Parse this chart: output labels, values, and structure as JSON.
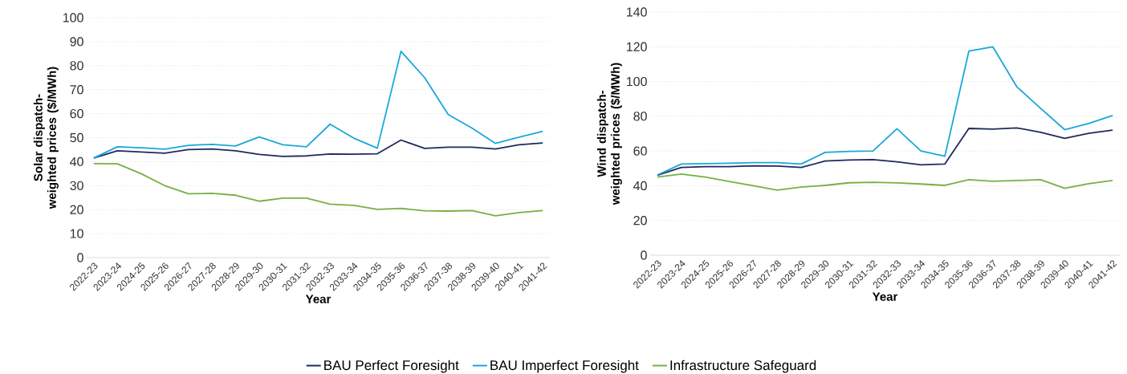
{
  "chart_data": [
    {
      "type": "line",
      "xlabel": "Year",
      "ylabel": "Solar dispatch-weighted prices ($/MWh)",
      "categories": [
        "2022-23",
        "2023-24",
        "2024-25",
        "2025-26",
        "2026-27",
        "2027-28",
        "2028-29",
        "2029-30",
        "2030-31",
        "2031-32",
        "2032-33",
        "2033-34",
        "2034-35",
        "2035-36",
        "2036-37",
        "2037-38",
        "2038-39",
        "2039-40",
        "2040-41",
        "2041-42"
      ],
      "ylim": [
        0,
        100
      ],
      "yticks": [
        0,
        10,
        20,
        30,
        40,
        50,
        60,
        70,
        80,
        90,
        100
      ],
      "grid": "y",
      "legend": "bottom",
      "marker": "none",
      "series": [
        {
          "name": "BAU Perfect Foresight",
          "color": "#1f2a5c",
          "values": [
            41.5,
            44.5,
            44,
            43.5,
            45,
            45.3,
            44.5,
            43,
            42.2,
            42.4,
            43.2,
            43.1,
            43.3,
            49,
            45.5,
            46,
            46,
            45.3,
            47,
            47.8
          ]
        },
        {
          "name": "BAU Imperfect Foresight",
          "color": "#1aa7dc",
          "values": [
            41.5,
            46.2,
            45.8,
            45.2,
            46.8,
            47.2,
            46.5,
            50.3,
            47,
            46.2,
            55.6,
            49.8,
            45.6,
            86,
            75,
            59.6,
            54,
            47.6,
            50.2,
            52.6
          ]
        },
        {
          "name": "Infrastructure Safeguard",
          "color": "#76b043",
          "values": [
            39.2,
            39.1,
            35,
            30,
            26.6,
            26.8,
            26,
            23.5,
            24.8,
            24.8,
            22.3,
            21.8,
            20.1,
            20.5,
            19.5,
            19.4,
            19.6,
            17.4,
            18.8,
            19.6
          ]
        }
      ]
    },
    {
      "type": "line",
      "xlabel": "Year",
      "ylabel": "Wind dispatch-weighted prices ($/MWh)",
      "categories": [
        "2022-23",
        "2023-24",
        "2024-25",
        "2025-26",
        "2026-27",
        "2027-28",
        "2028-29",
        "2029-30",
        "2030-31",
        "2031-32",
        "2032-33",
        "2033-34",
        "2034-35",
        "2035-36",
        "2036-37",
        "2037-38",
        "2038-39",
        "2039-40",
        "2040-41",
        "2041-42"
      ],
      "ylim": [
        0,
        140
      ],
      "yticks": [
        0,
        20,
        40,
        60,
        80,
        100,
        120,
        140
      ],
      "grid": "y",
      "marker": "none",
      "series": [
        {
          "color": "#1f2a5c",
          "values": [
            46,
            50.5,
            51,
            51,
            51.5,
            51.3,
            50.5,
            54.2,
            54.8,
            55,
            53.8,
            52,
            52.5,
            73,
            72.6,
            73.3,
            70.8,
            67.3,
            70.2,
            72
          ]
        },
        {
          "color": "#1aa7dc",
          "values": [
            46.2,
            52.5,
            52.7,
            53,
            53.3,
            53.3,
            52.5,
            59.2,
            59.8,
            60,
            72.8,
            60,
            57,
            117.5,
            120,
            97,
            84.5,
            72.3,
            75.8,
            80.5
          ]
        },
        {
          "color": "#76b043",
          "values": [
            45,
            46.7,
            45,
            42.5,
            40,
            37.5,
            39.2,
            40.2,
            41.7,
            42,
            41.6,
            41,
            40.2,
            43.5,
            42.6,
            43,
            43.5,
            38.5,
            41.2,
            43
          ]
        }
      ]
    }
  ]
}
